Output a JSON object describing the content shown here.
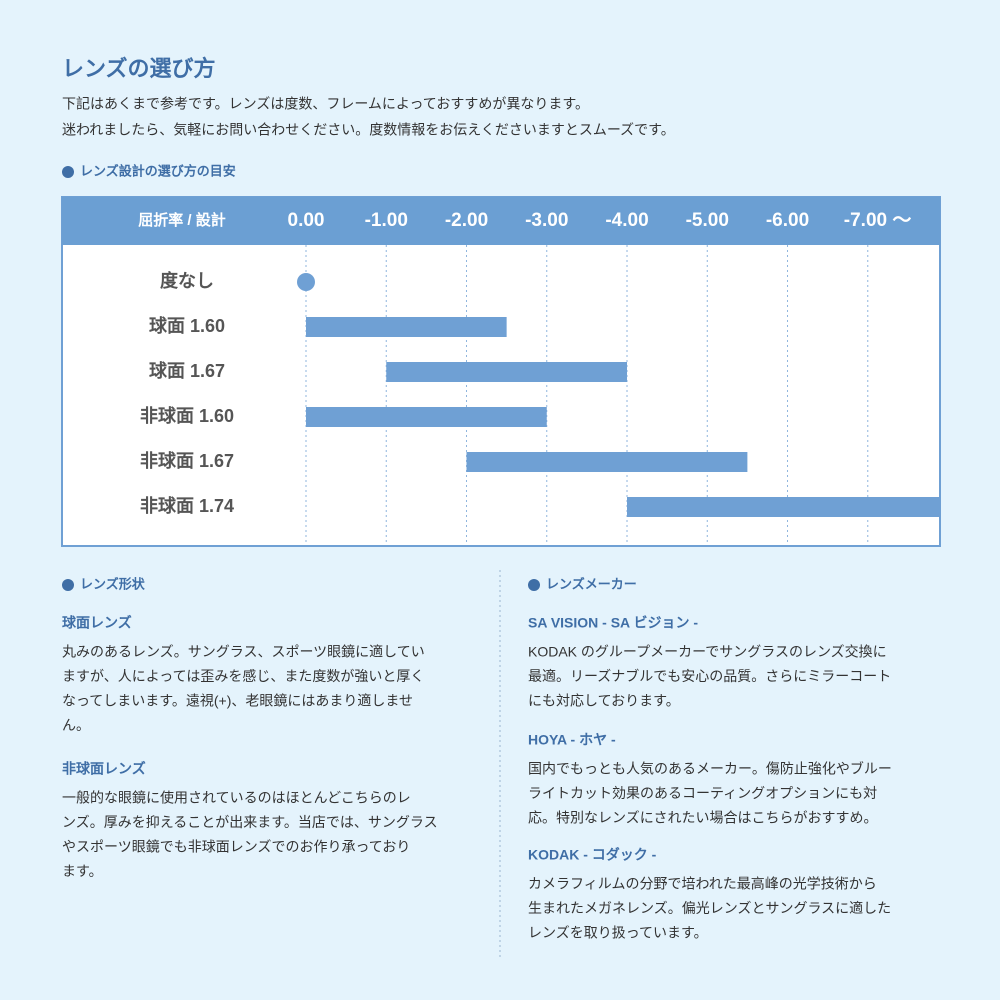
{
  "header": {
    "title": "レンズの選び方",
    "lines": [
      "下記はあくまで参考です。レンズは度数、フレームによっておすすめが異なります。",
      "迷われましたら、気軽にお問い合わせください。度数情報をお伝えくださいますとスムーズです。"
    ]
  },
  "chart_heading": "レンズ設計の選び方の目安",
  "chart_data": {
    "type": "range",
    "label_header": "屈折率 / 設計",
    "categories": [
      "度なし",
      "球面 1.60",
      "球面 1.67",
      "非球面 1.60",
      "非球面 1.67",
      "非球面 1.74"
    ],
    "starts": [
      0,
      0,
      -1,
      0,
      -2,
      -4
    ],
    "ends": [
      0,
      -2.5,
      -4,
      -3,
      -5.5,
      -7.9
    ],
    "xlim": [
      0,
      -7.9
    ],
    "xticks": [
      {
        "value": 0,
        "label": "0.00"
      },
      {
        "value": -1,
        "label": "-1.00"
      },
      {
        "value": -2,
        "label": "-2.00"
      },
      {
        "value": -3,
        "label": "-3.00"
      },
      {
        "value": -4,
        "label": "-4.00"
      },
      {
        "value": -5,
        "label": "-5.00"
      },
      {
        "value": -6,
        "label": "-6.00"
      },
      {
        "value": -7,
        "label": "-7.00 〜"
      }
    ],
    "color": "#6fa0d4",
    "grid": true
  },
  "sections": [
    {
      "heading": "レンズ形状",
      "items": [
        {
          "title": "球面レンズ",
          "lines": [
            "丸みのあるレンズ。サングラス、スポーツ眼鏡に適してい",
            "ますが、人によっては歪みを感じ、また度数が強いと厚く",
            "なってしまいます。遠視(+)、老眼鏡にはあまり適しませ",
            "ん。"
          ]
        },
        {
          "title": "非球面レンズ",
          "lines": [
            "一般的な眼鏡に使用されているのはほとんどこちらのレ",
            "ンズ。厚みを抑えることが出来ます。当店では、サングラス",
            "やスポーツ眼鏡でも非球面レンズでのお作り承っており",
            "ます。"
          ]
        }
      ]
    },
    {
      "heading": "レンズメーカー",
      "items": [
        {
          "title": "SA VISION - SA ビジョン -",
          "lines": [
            "KODAK のグループメーカーでサングラスのレンズ交換に",
            "最適。リーズナブルでも安心の品質。さらにミラーコート",
            "にも対応しております。"
          ]
        },
        {
          "title": "HOYA - ホヤ -",
          "lines": [
            "国内でもっとも人気のあるメーカー。傷防止強化やブルー",
            "ライトカット効果のあるコーティングオプションにも対",
            "応。特別なレンズにされたい場合はこちらがおすすめ。"
          ]
        },
        {
          "title": "KODAK - コダック -",
          "lines": [
            "カメラフィルムの分野で培われた最高峰の光学技術から",
            "生まれたメガネレンズ。偏光レンズとサングラスに適した",
            "レンズを取り扱っています。"
          ]
        }
      ]
    }
  ]
}
